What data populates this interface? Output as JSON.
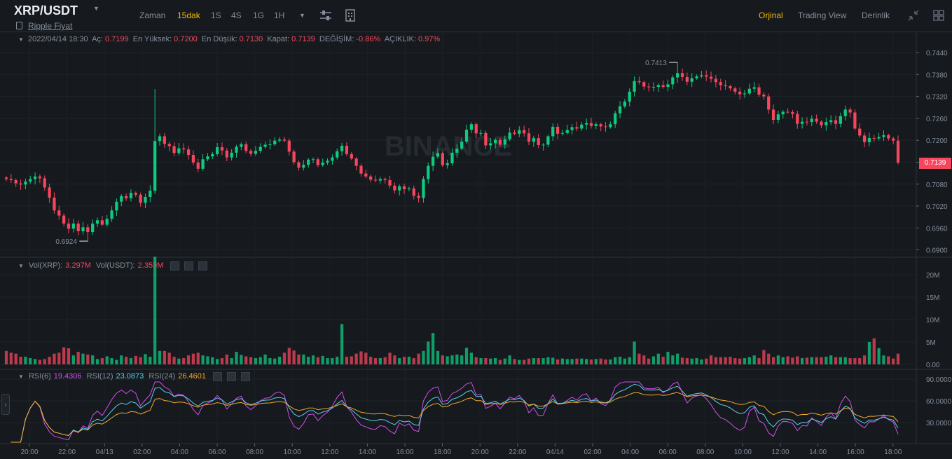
{
  "header": {
    "pair": "XRP/USDT",
    "subtitle_link": "Ripple Fiyat",
    "intervals": [
      {
        "label": "Zaman",
        "active": false
      },
      {
        "label": "15dak",
        "active": true
      },
      {
        "label": "1S",
        "active": false
      },
      {
        "label": "4S",
        "active": false
      },
      {
        "label": "1G",
        "active": false
      },
      {
        "label": "1H",
        "active": false
      }
    ],
    "views": [
      {
        "label": "Orjinal",
        "active": true
      },
      {
        "label": "Trading View",
        "active": false
      },
      {
        "label": "Derinlik",
        "active": false
      }
    ],
    "icons": [
      "chevron-down-icon",
      "settings-sliders-icon",
      "indicators-icon",
      "collapse-icon",
      "grid-layout-icon"
    ]
  },
  "info_bar": {
    "datetime": "2022/04/14 18:30",
    "open_label": "Aç:",
    "open": "0.7199",
    "high_label": "En Yüksek:",
    "high": "0.7200",
    "low_label": "En Düşük:",
    "low": "0.7130",
    "close_label": "Kapat:",
    "close": "0.7139",
    "change_label": "DEĞİŞİM:",
    "change": "-0.86%",
    "amplitude_label": "AÇIKLIK:",
    "amplitude": "0.97%"
  },
  "volume_legend": {
    "label_a": "Vol(XRP):",
    "value_a": "3.297M",
    "label_b": "Vol(USDT):",
    "value_b": "2.359M"
  },
  "rsi_legend": {
    "rsi6_label": "RSI(6)",
    "rsi6_value": "19.4306",
    "rsi12_label": "RSI(12)",
    "rsi12_value": "23.0873",
    "rsi24_label": "RSI(24)",
    "rsi24_value": "26.4601"
  },
  "price_tag": "0.7139",
  "watermark": "BINANCE",
  "chart_data": {
    "type": "candlestick",
    "price_axis": {
      "ticks": [
        "0.7440",
        "0.7380",
        "0.7320",
        "0.7260",
        "0.7200",
        "0.7140",
        "0.7080",
        "0.7020",
        "0.6960",
        "0.6900"
      ],
      "range": [
        0.6882,
        0.7465
      ],
      "last_price": 0.7139
    },
    "annotations": {
      "max_label": "0.7413",
      "max_value": 0.7413,
      "min_label": "0.6924",
      "min_value": 0.6924
    },
    "time_axis": [
      "20:00",
      "22:00",
      "04/13",
      "02:00",
      "04:00",
      "06:00",
      "08:00",
      "10:00",
      "12:00",
      "14:00",
      "16:00",
      "18:00",
      "20:00",
      "22:00",
      "04/14",
      "02:00",
      "04:00",
      "06:00",
      "08:00",
      "10:00",
      "12:00",
      "14:00",
      "16:00",
      "18:00"
    ],
    "closes": [
      0.7094,
      0.7091,
      0.7082,
      0.7079,
      0.7087,
      0.7094,
      0.7101,
      0.7096,
      0.7071,
      0.7043,
      0.7008,
      0.6994,
      0.6972,
      0.6958,
      0.6972,
      0.6951,
      0.6962,
      0.6949,
      0.6972,
      0.6981,
      0.6969,
      0.6985,
      0.7008,
      0.7032,
      0.7047,
      0.7041,
      0.7056,
      0.7051,
      0.7029,
      0.7045,
      0.7062,
      0.7198,
      0.7211,
      0.719,
      0.7184,
      0.7165,
      0.7178,
      0.7175,
      0.716,
      0.7139,
      0.7122,
      0.7148,
      0.7156,
      0.7162,
      0.7181,
      0.7172,
      0.7153,
      0.7166,
      0.7182,
      0.7189,
      0.7171,
      0.7163,
      0.7171,
      0.7182,
      0.7188,
      0.7189,
      0.7199,
      0.7202,
      0.7199,
      0.7169,
      0.714,
      0.7125,
      0.7133,
      0.7147,
      0.7148,
      0.7132,
      0.7139,
      0.7144,
      0.7153,
      0.717,
      0.7185,
      0.7162,
      0.715,
      0.713,
      0.7109,
      0.7101,
      0.7092,
      0.709,
      0.7094,
      0.7091,
      0.7076,
      0.7063,
      0.7074,
      0.7066,
      0.7068,
      0.7048,
      0.7042,
      0.7094,
      0.713,
      0.7155,
      0.7165,
      0.7132,
      0.7137,
      0.7166,
      0.7177,
      0.7196,
      0.7229,
      0.7244,
      0.7219,
      0.722,
      0.7186,
      0.7192,
      0.7201,
      0.7188,
      0.7203,
      0.7221,
      0.7218,
      0.7228,
      0.7219,
      0.7196,
      0.7206,
      0.7187,
      0.7188,
      0.7211,
      0.7237,
      0.7218,
      0.722,
      0.7228,
      0.7236,
      0.7232,
      0.7243,
      0.7247,
      0.7239,
      0.7244,
      0.7238,
      0.7236,
      0.7244,
      0.7274,
      0.7293,
      0.7306,
      0.7333,
      0.7362,
      0.7359,
      0.7347,
      0.7346,
      0.7346,
      0.7351,
      0.7346,
      0.7353,
      0.7372,
      0.7384,
      0.7373,
      0.736,
      0.737,
      0.7375,
      0.7378,
      0.7374,
      0.7368,
      0.7359,
      0.7351,
      0.7348,
      0.7342,
      0.7333,
      0.7326,
      0.7328,
      0.7341,
      0.7345,
      0.7325,
      0.732,
      0.7284,
      0.7256,
      0.7271,
      0.7278,
      0.7277,
      0.7272,
      0.7245,
      0.7251,
      0.725,
      0.7259,
      0.7251,
      0.7241,
      0.725,
      0.7255,
      0.7245,
      0.7266,
      0.7284,
      0.7276,
      0.7232,
      0.7213,
      0.7195,
      0.7206,
      0.7205,
      0.7209,
      0.7214,
      0.7205,
      0.7199,
      0.7139
    ],
    "volumes_m": [
      3.0,
      2.6,
      2.4,
      1.7,
      1.7,
      1.4,
      1.2,
      1.0,
      1.2,
      1.7,
      2.4,
      2.6,
      3.8,
      3.6,
      2.0,
      2.8,
      2.4,
      2.2,
      2.0,
      1.2,
      1.4,
      1.8,
      1.4,
      1.0,
      2.0,
      1.7,
      1.4,
      1.9,
      1.6,
      2.3,
      1.7,
      24.0,
      3.0,
      3.0,
      2.6,
      1.7,
      1.3,
      1.4,
      2.0,
      2.4,
      2.6,
      2.0,
      1.8,
      1.6,
      1.2,
      1.4,
      2.2,
      1.4,
      2.8,
      2.1,
      1.8,
      1.6,
      1.4,
      1.6,
      2.2,
      1.4,
      1.3,
      1.7,
      2.6,
      3.7,
      3.1,
      2.2,
      2.2,
      1.7,
      2.0,
      1.6,
      1.9,
      1.4,
      1.4,
      1.7,
      9.0,
      1.7,
      1.8,
      2.4,
      2.9,
      2.6,
      1.7,
      1.4,
      1.4,
      1.6,
      2.6,
      2.0,
      1.4,
      1.7,
      1.7,
      1.4,
      2.4,
      3.0,
      5.1,
      7.0,
      3.0,
      2.0,
      1.8,
      2.0,
      2.2,
      2.0,
      3.7,
      2.6,
      1.6,
      1.4,
      1.4,
      1.3,
      1.4,
      1.0,
      1.3,
      2.0,
      1.2,
      1.0,
      1.0,
      1.3,
      1.4,
      1.4,
      1.4,
      1.6,
      1.5,
      1.1,
      1.3,
      1.2,
      1.2,
      1.3,
      1.3,
      1.2,
      1.1,
      1.2,
      1.3,
      1.1,
      1.1,
      1.6,
      1.7,
      1.3,
      1.6,
      5.1,
      2.4,
      2.0,
      1.3,
      1.8,
      2.4,
      1.7,
      2.8,
      2.0,
      2.4,
      1.5,
      1.4,
      1.3,
      1.4,
      1.1,
      1.3,
      2.0,
      1.6,
      1.6,
      1.6,
      1.7,
      1.4,
      1.3,
      1.4,
      1.6,
      2.0,
      1.4,
      3.2,
      2.4,
      1.6,
      2.0,
      1.6,
      1.8,
      1.5,
      1.8,
      1.4,
      1.5,
      1.6,
      1.6,
      1.6,
      1.7,
      2.0,
      1.6,
      1.6,
      1.6,
      1.4,
      1.4,
      1.4,
      2.0,
      5.0,
      5.8,
      3.6,
      2.0,
      1.8,
      1.3,
      2.4,
      3.3
    ],
    "volume_axis": {
      "ticks": [
        "20M",
        "15M",
        "10M",
        "5M",
        "0.00"
      ]
    },
    "rsi_axis": {
      "ticks": [
        "90.0000",
        "60.0000",
        "30.0000"
      ]
    },
    "series": [
      {
        "name": "RSI(6)",
        "color": "#d54bf0"
      },
      {
        "name": "RSI(12)",
        "color": "#5ad0e8"
      },
      {
        "name": "RSI(24)",
        "color": "#f0a82e"
      }
    ],
    "colors": {
      "up": "#0ecb81",
      "down": "#f6465d"
    }
  }
}
